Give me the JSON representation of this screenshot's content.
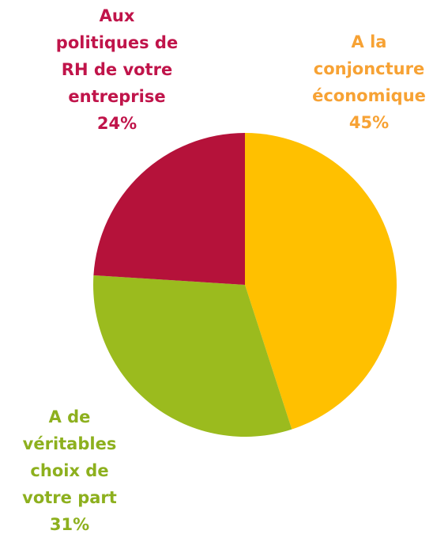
{
  "chart_data": {
    "type": "pie",
    "categories": [
      "A la conjoncture économique",
      "A de véritables choix de votre part",
      "Aux politiques de RH de votre entreprise"
    ],
    "values": [
      45,
      31,
      24
    ],
    "value_labels": [
      "45%",
      "31%",
      "24%"
    ],
    "colors": [
      "#ffc000",
      "#9bbb1e",
      "#b5123a"
    ],
    "label_colors": [
      "#f7a234",
      "#8db01e",
      "#c0144a"
    ]
  }
}
